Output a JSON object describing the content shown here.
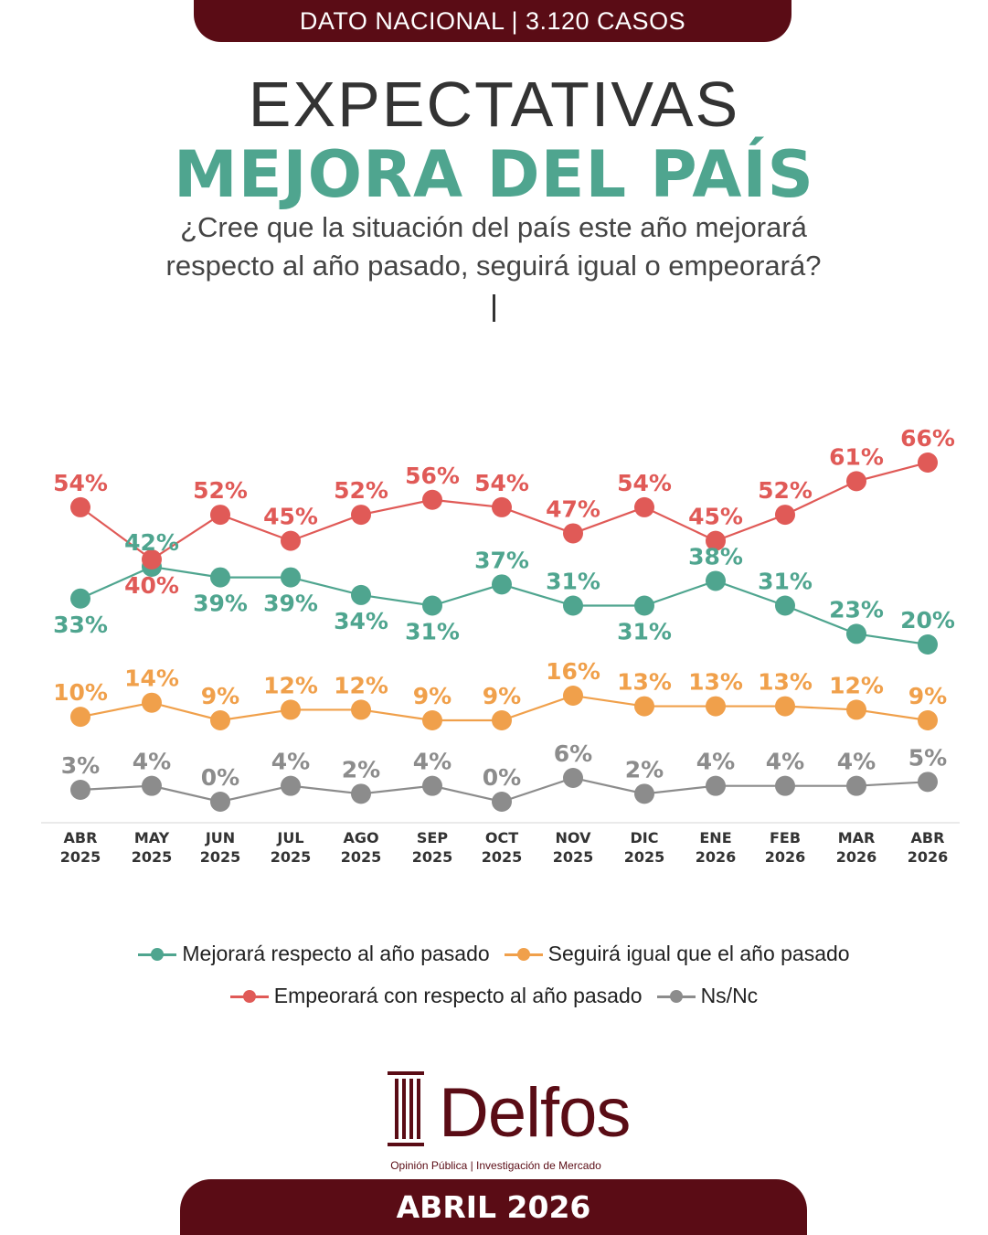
{
  "header": {
    "banner": "DATO NACIONAL | 3.120 CASOS"
  },
  "title": {
    "line1": "EXPECTATIVAS",
    "line2": "MEJORA DEL PAÍS"
  },
  "question": {
    "line1": "¿Cree que la situación del país este año mejorará",
    "line2": "respecto al año pasado, seguirá igual o empeorará?"
  },
  "colors": {
    "mejorara": "#4fa58f",
    "igual": "#f0a04b",
    "empeorara": "#e05a57",
    "nsnc": "#8c8c8c",
    "brand": "#5a0c15"
  },
  "chart_data": {
    "type": "line",
    "categories": [
      [
        "ABR",
        "2025"
      ],
      [
        "MAY",
        "2025"
      ],
      [
        "JUN",
        "2025"
      ],
      [
        "JUL",
        "2025"
      ],
      [
        "AGO",
        "2025"
      ],
      [
        "SEP",
        "2025"
      ],
      [
        "OCT",
        "2025"
      ],
      [
        "NOV",
        "2025"
      ],
      [
        "DIC",
        "2025"
      ],
      [
        "ENE",
        "2026"
      ],
      [
        "FEB",
        "2026"
      ],
      [
        "MAR",
        "2026"
      ],
      [
        "ABR",
        "2026"
      ]
    ],
    "series": [
      {
        "key": "empeorara",
        "name": "Empeorará con respecto al año pasado",
        "values": [
          54,
          40,
          52,
          45,
          52,
          56,
          54,
          47,
          54,
          45,
          52,
          61,
          66
        ]
      },
      {
        "key": "mejorara",
        "name": "Mejorará respecto al año pasado",
        "values": [
          33,
          42,
          39,
          39,
          34,
          31,
          37,
          31,
          31,
          38,
          31,
          23,
          20
        ]
      },
      {
        "key": "igual",
        "name": "Seguirá igual que el año pasado",
        "values": [
          10,
          14,
          9,
          12,
          12,
          9,
          9,
          16,
          13,
          13,
          13,
          12,
          9
        ]
      },
      {
        "key": "nsnc",
        "name": "Ns/Nc",
        "values": [
          3,
          4,
          0,
          4,
          2,
          4,
          0,
          6,
          2,
          4,
          4,
          4,
          5
        ]
      }
    ],
    "value_suffix": "%",
    "legend_position": "bottom"
  },
  "footer": {
    "logo_word": "Delfos",
    "logo_tagline": "Opinión Pública | Investigación de Mercado",
    "date_banner": "ABRIL 2026"
  }
}
